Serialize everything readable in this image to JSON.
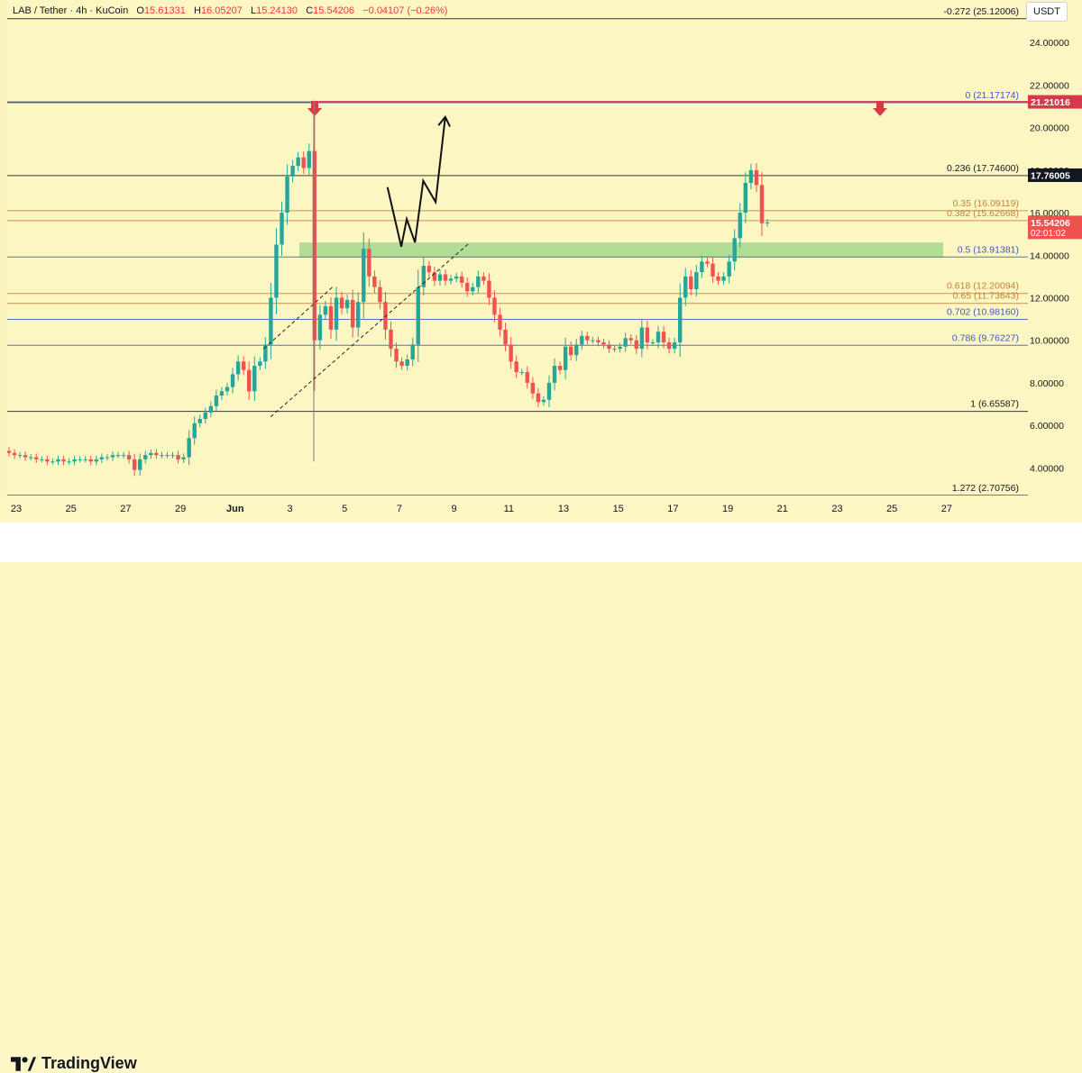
{
  "header": {
    "symbol": "LAB / Tether · 4h · KuCoin",
    "open_label": "O",
    "open": "15.61331",
    "high_label": "H",
    "high": "16.05207",
    "low_label": "L",
    "low": "15.24130",
    "close_label": "C",
    "close": "15.54206",
    "change": "−0.04107 (−0.26%)",
    "currency": "USDT"
  },
  "footer": {
    "brand": "TradingView"
  },
  "colors": {
    "up": "#26a69a",
    "down": "#ef5350",
    "fib_black": "#131722",
    "fib_orange": "#c77f3b",
    "fib_blue": "#3f57c9",
    "resistance": "#d63a4a",
    "zone": "#a5d88f"
  },
  "chart_data": {
    "type": "candlestick",
    "timeframe": "4h",
    "ylim": [
      2.7,
      26
    ],
    "y_ticks": [
      "4.00000",
      "6.00000",
      "8.00000",
      "10.00000",
      "12.00000",
      "14.00000",
      "16.00000",
      "18.00000",
      "20.00000",
      "22.00000",
      "24.00000"
    ],
    "x_ticks": [
      "23",
      "25",
      "27",
      "29",
      "Jun",
      "3",
      "5",
      "7",
      "9",
      "11",
      "13",
      "15",
      "17",
      "19",
      "21",
      "23",
      "25",
      "27"
    ],
    "fib_levels": [
      {
        "label": "-0.272 (25.12006)",
        "value": 25.12006,
        "color": "black"
      },
      {
        "label": "0 (21.17174)",
        "value": 21.17174,
        "color": "blue"
      },
      {
        "label": "0.236 (17.74600)",
        "value": 17.746,
        "color": "black"
      },
      {
        "label": "0.35 (16.09119)",
        "value": 16.09119,
        "color": "orange"
      },
      {
        "label": "0.382 (15.62668)",
        "value": 15.62668,
        "color": "orange"
      },
      {
        "label": "0.5 (13.91381)",
        "value": 13.91381,
        "color": "blue"
      },
      {
        "label": "0.618 (12.20094)",
        "value": 12.20094,
        "color": "orange"
      },
      {
        "label": "0.65 (11.73643)",
        "value": 11.73643,
        "color": "orange"
      },
      {
        "label": "0.702 (10.98160)",
        "value": 10.9816,
        "color": "blue"
      },
      {
        "label": "0.786 (9.76227)",
        "value": 9.76227,
        "color": "blue"
      },
      {
        "label": "1 (6.65587)",
        "value": 6.65587,
        "color": "black"
      },
      {
        "label": "1.272 (2.70756)",
        "value": 2.70756,
        "color": "black"
      }
    ],
    "resistance": {
      "value": 21.21016,
      "label": "21.21016"
    },
    "price_labels": [
      {
        "label": "17.76005",
        "value": 17.76005
      },
      {
        "label": "15.54206",
        "value": 15.54206,
        "sub": "02:01:02"
      }
    ],
    "zone": {
      "low": 13.9,
      "high": 14.6
    },
    "closes": [
      4.7,
      4.6,
      4.6,
      4.5,
      4.5,
      4.4,
      4.4,
      4.3,
      4.3,
      4.4,
      4.3,
      4.3,
      4.4,
      4.4,
      4.4,
      4.3,
      4.4,
      4.5,
      4.5,
      4.6,
      4.6,
      4.6,
      4.4,
      3.9,
      4.4,
      4.6,
      4.7,
      4.6,
      4.6,
      4.6,
      4.6,
      4.4,
      4.5,
      5.4,
      6.1,
      6.3,
      6.6,
      6.9,
      7.4,
      7.6,
      7.8,
      8.4,
      9.0,
      8.6,
      7.6,
      8.8,
      9.0,
      9.8,
      12.0,
      14.5,
      16.0,
      17.7,
      18.2,
      18.6,
      18.1,
      18.9,
      10.0,
      11.2,
      11.6,
      10.5,
      12.0,
      11.5,
      11.9,
      10.6,
      11.8,
      14.3,
      13.0,
      12.5,
      11.8,
      10.5,
      9.6,
      9.0,
      8.8,
      9.1,
      9.8,
      12.5,
      13.5,
      13.2,
      12.8,
      13.1,
      12.8,
      12.9,
      13.0,
      12.7,
      12.3,
      12.5,
      13.0,
      12.8,
      12.0,
      11.2,
      10.5,
      9.8,
      9.0,
      8.5,
      8.5,
      8.0,
      7.5,
      7.1,
      7.2,
      8.0,
      8.8,
      8.6,
      9.7,
      9.3,
      9.8,
      10.2,
      10.0,
      10.0,
      9.9,
      9.8,
      9.6,
      9.6,
      9.7,
      10.1,
      10.0,
      9.6,
      10.6,
      9.9,
      9.9,
      10.4,
      9.9,
      9.6,
      9.9,
      12.0,
      13.0,
      12.4,
      13.2,
      13.7,
      13.6,
      13.0,
      12.8,
      13.0,
      13.7,
      14.8,
      16.0,
      17.4,
      18.0,
      17.3,
      15.5,
      15.54
    ],
    "projection": [
      [
        19.0,
        17.2
      ],
      [
        20.0,
        14.4
      ],
      [
        20.4,
        15.7
      ],
      [
        21.0,
        14.6
      ],
      [
        21.6,
        17.5
      ],
      [
        22.5,
        16.5
      ],
      [
        23.2,
        20.5
      ]
    ],
    "channel_upper": [
      [
        10.0,
        9.6
      ],
      [
        15.0,
        12.5
      ]
    ],
    "channel_lower": [
      [
        10.5,
        6.4
      ],
      [
        25.0,
        14.6
      ]
    ]
  }
}
